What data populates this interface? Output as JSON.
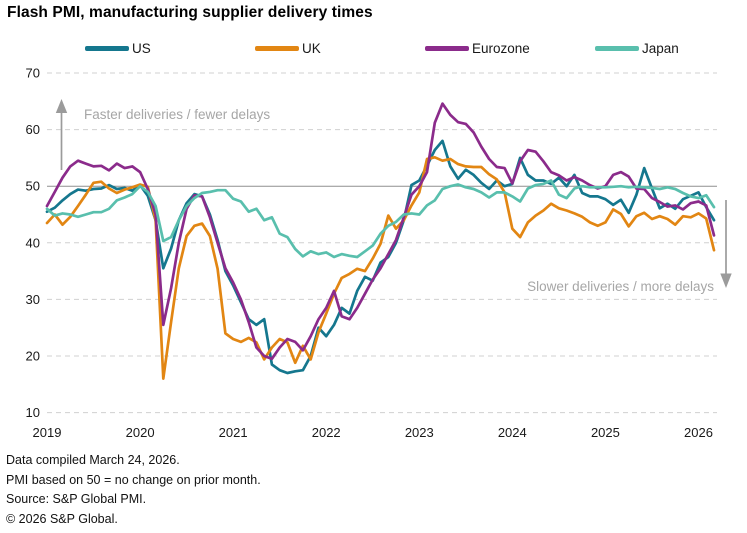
{
  "chart_data": {
    "type": "line",
    "title": "Flash PMI, manufacturing supplier delivery times",
    "frequency": "monthly",
    "x_start": "2019-01",
    "x_end": "2026-03",
    "x_tick_labels": [
      "2019",
      "2020",
      "2021",
      "2022",
      "2023",
      "2024",
      "2025",
      "2026"
    ],
    "ylim": [
      10,
      70
    ],
    "y_ticks": [
      10,
      20,
      30,
      40,
      50,
      60,
      70
    ],
    "reference_line": 50,
    "legend_position": "top",
    "grid": "horizontal-dashed",
    "annotations": {
      "upper": "Faster deliveries / fewer delays",
      "lower": "Slower deliveries / more delays"
    },
    "series": [
      {
        "name": "US",
        "color": "#15778E",
        "values": [
          45.5,
          46.2,
          47.5,
          48.6,
          49.4,
          49.2,
          49.5,
          49.6,
          50.2,
          49.5,
          49.7,
          49.2,
          50.2,
          48.3,
          44,
          35.5,
          39,
          44,
          47,
          48.6,
          48.2,
          45,
          40.5,
          35,
          32.5,
          29.5,
          26.5,
          25.5,
          26.5,
          18.5,
          17.5,
          17,
          17.3,
          17.5,
          20,
          25,
          23.5,
          25.5,
          28.5,
          27.5,
          31.5,
          34,
          33.3,
          36.5,
          37.5,
          40,
          44,
          50.2,
          51,
          53.6,
          56.4,
          58,
          53.5,
          51.3,
          52.9,
          52,
          50.6,
          49.5,
          51,
          50,
          50.4,
          55,
          52,
          51,
          51,
          50.4,
          51.5,
          50,
          52,
          48.8,
          48.2,
          48.2,
          47.7,
          46.7,
          47.6,
          45.3,
          48.5,
          53.2,
          49.6,
          46.1,
          46.9,
          46,
          47.7,
          48.3,
          48.9,
          46.3,
          44
        ]
      },
      {
        "name": "UK",
        "color": "#E28613",
        "values": [
          43.5,
          45,
          43.2,
          44.6,
          46.5,
          48.5,
          50.6,
          50.8,
          49.6,
          48.8,
          49.4,
          49.8,
          50.3,
          49.9,
          44,
          16,
          26,
          35.5,
          41.2,
          43,
          43.4,
          41.2,
          35.4,
          24,
          23,
          22.5,
          23.2,
          22.4,
          19.4,
          21.5,
          23,
          22.4,
          18.8,
          21.8,
          19.4,
          24.2,
          27.5,
          31,
          33.8,
          34.5,
          35.4,
          35,
          37.2,
          39.8,
          44.8,
          42.5,
          44,
          46.6,
          48.9,
          54.8,
          55.1,
          54.5,
          54.8,
          53.9,
          53.5,
          53.4,
          53.4,
          52.1,
          51.2,
          48.9,
          42.5,
          41,
          43.6,
          44.8,
          45.7,
          46.9,
          46.1,
          45.7,
          45.2,
          44.6,
          43.6,
          43,
          43.6,
          45.9,
          45.1,
          42.9,
          44.7,
          45.3,
          44.2,
          44.7,
          44.2,
          43.2,
          44.7,
          44.5,
          45.2,
          44.3,
          38.7
        ]
      },
      {
        "name": "Eurozone",
        "color": "#8B2B8B",
        "values": [
          46.5,
          49,
          51.5,
          53.5,
          54.5,
          54,
          53.5,
          53.6,
          52.8,
          54,
          53.2,
          53.5,
          52.5,
          49.5,
          45,
          25.5,
          32,
          40,
          46,
          48.4,
          48.2,
          44.5,
          40,
          35.5,
          33,
          30,
          26,
          21.5,
          20,
          19.5,
          21.5,
          23,
          22.5,
          21,
          23.5,
          26.5,
          28.5,
          31.5,
          27,
          26.5,
          28.5,
          31,
          33.5,
          35.5,
          38,
          40.5,
          44.5,
          48.5,
          50,
          52.5,
          61.2,
          64.6,
          62.6,
          61.3,
          61,
          59.5,
          57,
          54.8,
          53.4,
          53.2,
          50.5,
          54.4,
          56.4,
          56.1,
          54.4,
          52.5,
          51.9,
          51,
          51.6,
          51,
          50.2,
          49.6,
          50,
          52,
          52.5,
          51.7,
          49.6,
          49.5,
          47.9,
          47.2,
          46.4,
          46.6,
          45.9,
          47,
          47.3,
          46.6,
          41.3
        ]
      },
      {
        "name": "Japan",
        "color": "#59BFAD",
        "values": [
          46,
          44.8,
          45.2,
          45,
          44.6,
          45,
          45.4,
          45.4,
          46,
          47.5,
          48,
          48.6,
          50,
          49,
          46.5,
          40.3,
          41,
          44,
          46.5,
          47.9,
          48.8,
          49,
          49.3,
          49.3,
          47.8,
          47.3,
          45.5,
          46,
          44,
          44.5,
          41.6,
          41,
          38.9,
          37.6,
          38.5,
          38,
          38.3,
          37.5,
          38,
          37.7,
          37.5,
          38.5,
          39.5,
          41.6,
          43,
          43.7,
          45,
          45.2,
          45,
          46.6,
          47.5,
          49.5,
          50,
          50.3,
          49.8,
          49.5,
          48.9,
          48,
          48.9,
          48.9,
          48.2,
          47.3,
          49.6,
          50.2,
          50.4,
          51,
          48.5,
          47.9,
          49.6,
          50,
          49.8,
          49.8,
          49.8,
          49.9,
          50,
          49.8,
          49.9,
          49.8,
          49.7,
          49.5,
          49.8,
          49.5,
          48.8,
          48.2,
          47.9,
          48.4,
          46.3
        ]
      }
    ],
    "colors": {
      "gridline": "#d0d0d0",
      "reference_line": "#8f8f8f",
      "annotation_text": "#a6a6a6",
      "arrow": "#9b9b9b"
    }
  },
  "footer": {
    "lines": [
      "Data compiled March 24, 2026.",
      "PMI based on 50 = no change on prior month.",
      "Source: S&P Global PMI.",
      "© 2026 S&P Global."
    ]
  }
}
